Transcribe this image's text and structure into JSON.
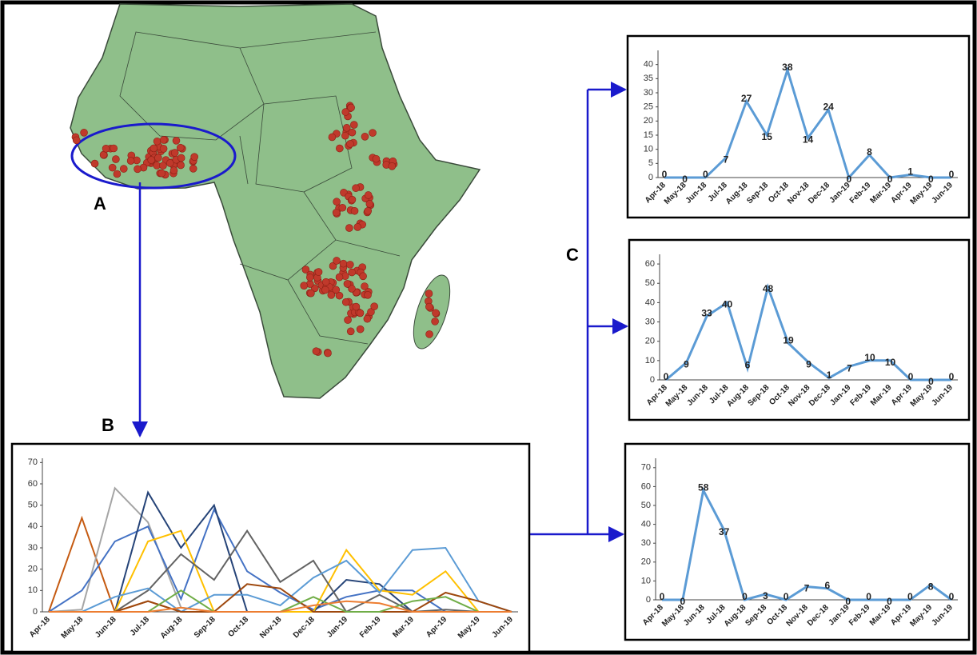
{
  "panel_labels": [
    "A",
    "B",
    "C"
  ],
  "chart_data": [
    {
      "type": "line",
      "categories": [
        "Apr-18",
        "May-18",
        "Jun-18",
        "Jul-18",
        "Aug-18",
        "Sep-18",
        "Oct-18",
        "Nov-18",
        "Dec-18",
        "Jan-19",
        "Feb-19",
        "Mar-19",
        "Apr-19",
        "May-19",
        "Jun-19"
      ],
      "ylim": [
        0,
        72
      ],
      "yticks": [
        0,
        10,
        20,
        30,
        40,
        50,
        60,
        70
      ],
      "data_labels": false,
      "series": [
        {
          "color": "#c55a11",
          "values": [
            0,
            44,
            0,
            5,
            0,
            0,
            0,
            0,
            0,
            0,
            0,
            0,
            0,
            0,
            0
          ]
        },
        {
          "color": "#a5a5a5",
          "values": [
            0,
            1,
            58,
            42,
            2,
            0,
            0,
            0,
            0,
            0,
            0,
            0,
            0,
            0,
            0
          ]
        },
        {
          "color": "#4472c4",
          "values": [
            0,
            10,
            33,
            40,
            6,
            48,
            19,
            9,
            1,
            7,
            10,
            10,
            0,
            0,
            0
          ]
        },
        {
          "color": "#264478",
          "values": [
            0,
            0,
            0,
            56,
            30,
            50,
            0,
            0,
            0,
            15,
            13,
            0,
            0,
            0,
            0
          ]
        },
        {
          "color": "#ffc000",
          "values": [
            0,
            0,
            0,
            33,
            38,
            0,
            0,
            0,
            0,
            29,
            10,
            8,
            19,
            0,
            0
          ]
        },
        {
          "color": "#636363",
          "values": [
            0,
            0,
            0,
            10,
            27,
            15,
            38,
            14,
            24,
            0,
            8,
            0,
            1,
            0,
            0
          ]
        },
        {
          "color": "#5b9bd5",
          "values": [
            0,
            0,
            7,
            11,
            0,
            8,
            8,
            3,
            16,
            24,
            9,
            29,
            30,
            5,
            0
          ]
        },
        {
          "color": "#9e480e",
          "values": [
            0,
            0,
            0,
            5,
            0,
            0,
            13,
            11,
            0,
            0,
            0,
            0,
            9,
            5,
            0
          ]
        },
        {
          "color": "#70ad47",
          "values": [
            0,
            0,
            0,
            0,
            10,
            0,
            0,
            0,
            7,
            0,
            0,
            5,
            7,
            0,
            0
          ]
        },
        {
          "color": "#ed7d31",
          "values": [
            0,
            0,
            0,
            0,
            2,
            0,
            0,
            0,
            3,
            5,
            4,
            0,
            0,
            0,
            0
          ]
        }
      ]
    },
    {
      "type": "line",
      "categories": [
        "Apr-18",
        "May-18",
        "Jun-18",
        "Jul-18",
        "Aug-18",
        "Sep-18",
        "Oct-18",
        "Nov-18",
        "Dec-18",
        "Jan-19",
        "Feb-19",
        "Mar-19",
        "Apr-19",
        "May-19",
        "Jun-19"
      ],
      "ylim": [
        0,
        45
      ],
      "yticks": [
        0,
        5,
        10,
        15,
        20,
        25,
        30,
        35,
        40
      ],
      "data_labels": true,
      "series": [
        {
          "color": "#5b9bd5",
          "values": [
            0,
            0,
            0,
            7,
            27,
            15,
            38,
            14,
            24,
            0,
            8,
            0,
            1,
            0,
            0
          ]
        }
      ]
    },
    {
      "type": "line",
      "categories": [
        "Apr-18",
        "May-18",
        "Jun-18",
        "Jul-18",
        "Aug-18",
        "Sep-18",
        "Oct-18",
        "Nov-18",
        "Dec-18",
        "Jan-19",
        "Feb-19",
        "Mar-19",
        "Apr-19",
        "May-19",
        "Jun-19"
      ],
      "ylim": [
        0,
        65
      ],
      "yticks": [
        0,
        10,
        20,
        30,
        40,
        50,
        60
      ],
      "data_labels": true,
      "series": [
        {
          "color": "#5b9bd5",
          "values": [
            0,
            9,
            33,
            40,
            6,
            48,
            19,
            9,
            1,
            7,
            10,
            10,
            0,
            0,
            0
          ]
        }
      ]
    },
    {
      "type": "line",
      "categories": [
        "Apr-18",
        "May-18",
        "Jun-18",
        "Jul-18",
        "Aug-18",
        "Sep-18",
        "Oct-18",
        "Nov-18",
        "Dec-18",
        "Jan-19",
        "Feb-19",
        "Mar-19",
        "Apr-19",
        "May-19",
        "Jun-19"
      ],
      "ylim": [
        0,
        75
      ],
      "yticks": [
        0,
        10,
        20,
        30,
        40,
        50,
        60,
        70
      ],
      "data_labels": true,
      "series": [
        {
          "color": "#5b9bd5",
          "values": [
            0,
            0,
            58,
            37,
            0,
            3,
            0,
            7,
            6,
            0,
            0,
            0,
            0,
            8,
            0
          ]
        }
      ]
    }
  ]
}
